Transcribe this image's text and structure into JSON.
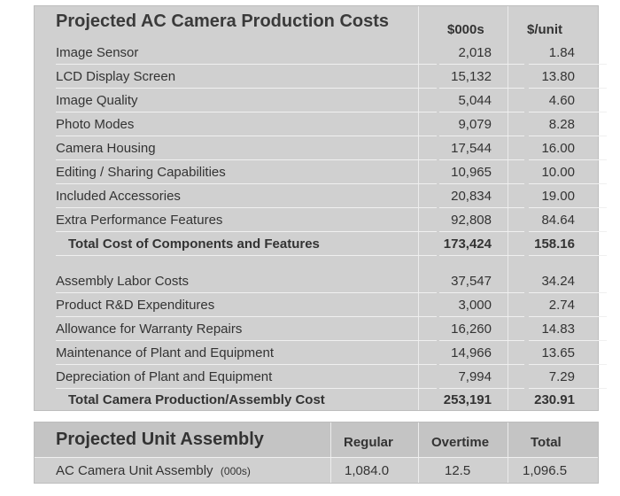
{
  "costs": {
    "title": "Projected AC Camera Production Costs",
    "col1": "$000s",
    "col2": "$/unit",
    "rows": [
      {
        "label": "Image Sensor",
        "v1": "2,018",
        "v2": "1.84"
      },
      {
        "label": "LCD Display Screen",
        "v1": "15,132",
        "v2": "13.80"
      },
      {
        "label": "Image Quality",
        "v1": "5,044",
        "v2": "4.60"
      },
      {
        "label": "Photo Modes",
        "v1": "9,079",
        "v2": "8.28"
      },
      {
        "label": "Camera Housing",
        "v1": "17,544",
        "v2": "16.00"
      },
      {
        "label": "Editing / Sharing Capabilities",
        "v1": "10,965",
        "v2": "10.00"
      },
      {
        "label": "Included Accessories",
        "v1": "20,834",
        "v2": "19.00"
      },
      {
        "label": "Extra Performance Features",
        "v1": "92,808",
        "v2": "84.64"
      },
      {
        "label": "Total Cost of Components and Features",
        "v1": "173,424",
        "v2": "158.16"
      },
      {
        "label": "Assembly Labor Costs",
        "v1": "37,547",
        "v2": "34.24"
      },
      {
        "label": "Product R&D Expenditures",
        "v1": "3,000",
        "v2": "2.74"
      },
      {
        "label": "Allowance for Warranty Repairs",
        "v1": "16,260",
        "v2": "14.83"
      },
      {
        "label": "Maintenance of Plant and Equipment",
        "v1": "14,966",
        "v2": "13.65"
      },
      {
        "label": "Depreciation of Plant and Equipment",
        "v1": "7,994",
        "v2": "7.29"
      },
      {
        "label": "Total Camera Production/Assembly Cost",
        "v1": "253,191",
        "v2": "230.91"
      }
    ]
  },
  "assembly": {
    "title": "Projected Unit Assembly",
    "col_regular": "Regular",
    "col_overtime": "Overtime",
    "col_total": "Total",
    "row_label": "AC Camera Unit Assembly",
    "row_unit": "(000s)",
    "regular": "1,084.0",
    "overtime": "12.5",
    "total": "1,096.5"
  }
}
